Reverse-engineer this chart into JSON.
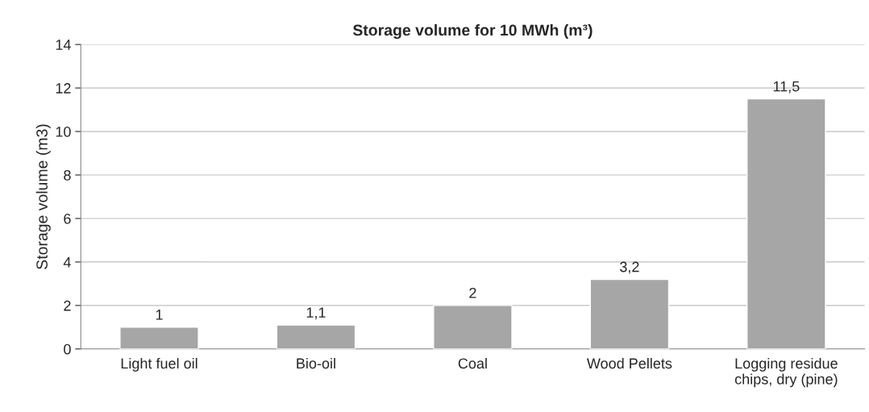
{
  "chart_data": {
    "type": "bar",
    "title": "Storage volume for 10 MWh (m³)",
    "ylabel": "Storage volume (m3)",
    "categories": [
      "Light fuel oil",
      "Bio-oil",
      "Coal",
      "Wood Pellets",
      "Logging residue\nchips, dry (pine)"
    ],
    "values": [
      1,
      1.1,
      2,
      3.2,
      11.5
    ],
    "value_labels": [
      "1",
      "1,1",
      "2",
      "3,2",
      "11,5"
    ],
    "color": "#a6a6a6",
    "ylim": [
      0,
      14
    ],
    "yticks": [
      0,
      2,
      4,
      6,
      8,
      10,
      12,
      14
    ],
    "grid": "y"
  }
}
